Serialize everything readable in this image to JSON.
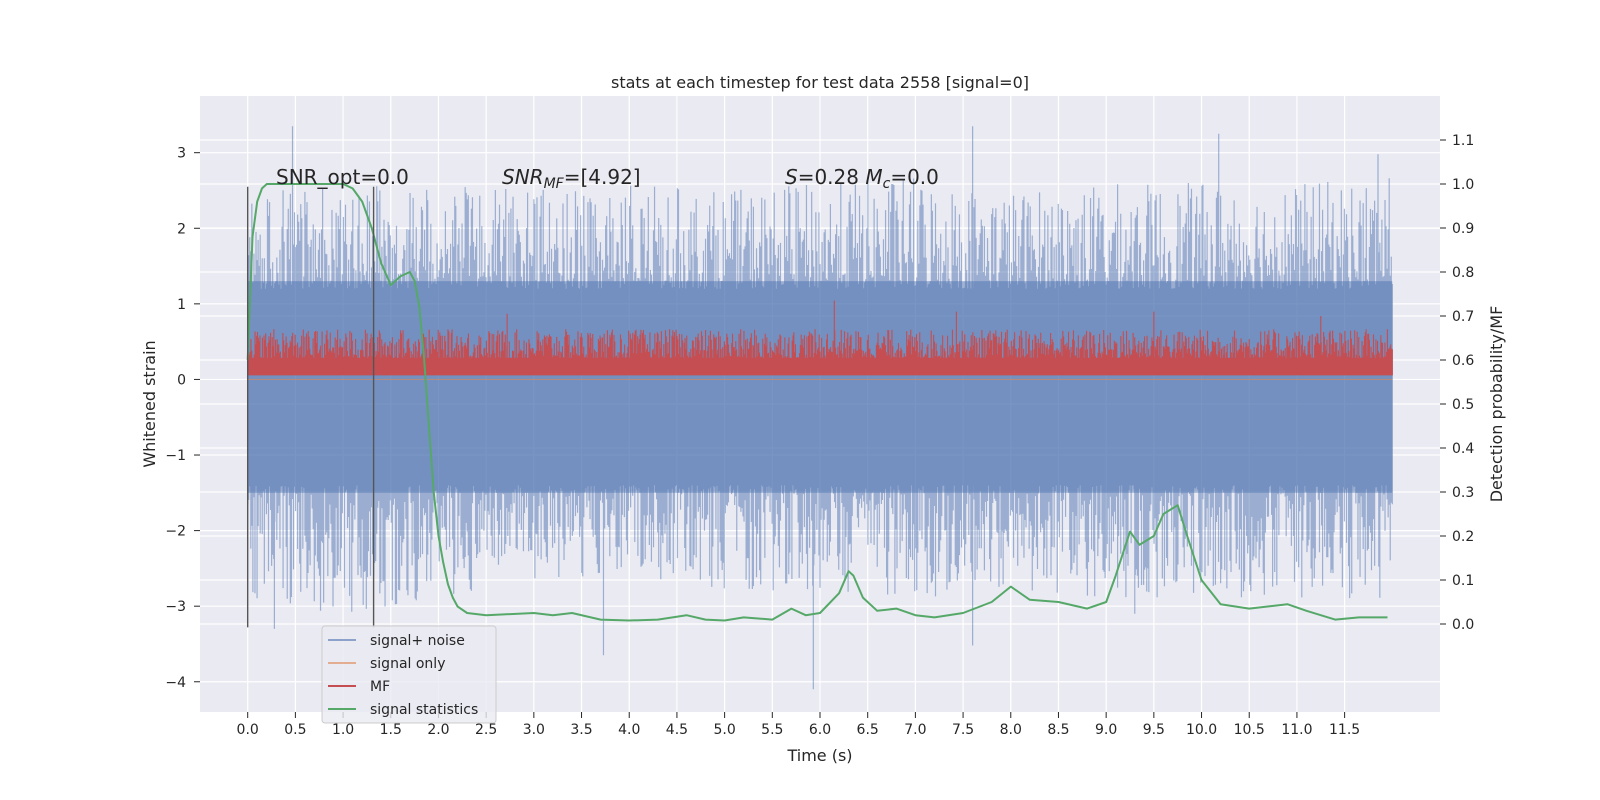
{
  "chart_data": {
    "type": "line",
    "title": "stats at each timestep for test data 2558 [signal=0]",
    "xlabel": "Time (s)",
    "ylabel": "Whitened strain",
    "y2label": "Detection probability/MF",
    "xlim": [
      -0.5,
      12.5
    ],
    "ylim": [
      -4.4,
      3.75
    ],
    "y2lim": [
      -0.2,
      1.2
    ],
    "x_ticks": [
      0.0,
      0.5,
      1.0,
      1.5,
      2.0,
      2.5,
      3.0,
      3.5,
      4.0,
      4.5,
      5.0,
      5.5,
      6.0,
      6.5,
      7.0,
      7.5,
      8.0,
      8.5,
      9.0,
      9.5,
      10.0,
      10.5,
      11.0,
      11.5
    ],
    "x_tick_labels": [
      "0.0",
      "0.5",
      "1.0",
      "1.5",
      "2.0",
      "2.5",
      "3.0",
      "3.5",
      "4.0",
      "4.5",
      "5.0",
      "5.5",
      "6.0",
      "6.5",
      "7.0",
      "7.5",
      "8.0",
      "8.5",
      "9.0",
      "9.5",
      "10.0",
      "10.5",
      "11.0",
      "11.5"
    ],
    "y_ticks": [
      -4,
      -3,
      -2,
      -1,
      0,
      1,
      2,
      3
    ],
    "y_tick_labels": [
      "−4",
      "−3",
      "−2",
      "−1",
      "0",
      "1",
      "2",
      "3"
    ],
    "y2_ticks": [
      0.0,
      0.1,
      0.2,
      0.3,
      0.4,
      0.5,
      0.6,
      0.7,
      0.8,
      0.9,
      1.0,
      1.1
    ],
    "y2_tick_labels": [
      "0.0",
      "0.1",
      "0.2",
      "0.3",
      "0.4",
      "0.5",
      "0.6",
      "0.7",
      "0.8",
      "0.9",
      "1.0",
      "1.1"
    ],
    "grid": true,
    "legend_position": "lower-left",
    "annotations": [
      {
        "text": "SNR_opt=0.0",
        "x": 0.2,
        "y": 2.45
      },
      {
        "text": "SNRMF=[4.92]",
        "x": 2.6,
        "y": 2.45
      },
      {
        "text": "S=0.28   Mc=0.0",
        "x": 5.6,
        "y": 2.45
      }
    ],
    "vlines": [
      {
        "x": 0.0,
        "ymin": -3.28,
        "ymax": 2.55
      },
      {
        "x": 1.32,
        "ymin": -3.28,
        "ymax": 2.55
      }
    ],
    "series": [
      {
        "name": "signal+ noise",
        "color": "#4c72b0",
        "axis": "left",
        "kind": "noise",
        "x_range": [
          0.0,
          12.0
        ],
        "envelope_upper": [
          2.5,
          2.6,
          2.6,
          2.5,
          2.6,
          2.5,
          2.6,
          2.7,
          2.5,
          2.6,
          2.6,
          2.6,
          2.7
        ],
        "envelope_lower": [
          -3.0,
          -3.1,
          -2.9,
          -2.7,
          -2.6,
          -2.8,
          -2.8,
          -2.9,
          -2.8,
          -2.9,
          -2.9,
          -2.9,
          -2.9
        ],
        "extremes": [
          {
            "x": 0.47,
            "y": 3.35
          },
          {
            "x": 0.28,
            "y": -3.3
          },
          {
            "x": 3.73,
            "y": -3.65
          },
          {
            "x": 5.93,
            "y": -4.1
          },
          {
            "x": 7.6,
            "y": 3.35
          },
          {
            "x": 7.6,
            "y": -3.52
          },
          {
            "x": 10.18,
            "y": 3.25
          },
          {
            "x": 9.3,
            "y": -3.1
          },
          {
            "x": 11.85,
            "y": 2.98
          }
        ]
      },
      {
        "name": "signal only",
        "color": "#dd8452",
        "axis": "left",
        "kind": "flat",
        "x": [
          0.0,
          12.0
        ],
        "y": [
          0.0,
          0.0
        ]
      },
      {
        "name": "MF",
        "color": "#c44e52",
        "axis": "right",
        "kind": "band",
        "x_range": [
          0.0,
          12.0
        ],
        "base": 0.57,
        "upper_typ": 0.67,
        "extremes": [
          {
            "x": 6.15,
            "y": 0.735
          },
          {
            "x": 2.72,
            "y": 0.705
          },
          {
            "x": 7.43,
            "y": 0.71
          },
          {
            "x": 9.5,
            "y": 0.71
          },
          {
            "x": 11.25,
            "y": 0.7
          }
        ]
      },
      {
        "name": "signal statistics",
        "color": "#55a868",
        "axis": "right",
        "kind": "line",
        "x": [
          0.0,
          0.05,
          0.1,
          0.15,
          0.2,
          0.3,
          0.5,
          0.75,
          1.0,
          1.1,
          1.2,
          1.3,
          1.4,
          1.5,
          1.6,
          1.7,
          1.75,
          1.8,
          1.85,
          1.9,
          1.95,
          2.0,
          2.05,
          2.1,
          2.15,
          2.2,
          2.3,
          2.5,
          3.0,
          3.2,
          3.4,
          3.7,
          4.0,
          4.3,
          4.6,
          4.8,
          5.0,
          5.2,
          5.5,
          5.7,
          5.85,
          6.0,
          6.2,
          6.3,
          6.35,
          6.45,
          6.6,
          6.8,
          7.0,
          7.2,
          7.5,
          7.8,
          8.0,
          8.2,
          8.5,
          8.8,
          9.0,
          9.1,
          9.25,
          9.35,
          9.5,
          9.6,
          9.75,
          9.85,
          10.0,
          10.2,
          10.5,
          10.9,
          11.1,
          11.4,
          11.65,
          11.95
        ],
        "y": [
          0.6,
          0.88,
          0.96,
          0.99,
          1.0,
          1.0,
          1.0,
          1.0,
          1.0,
          0.99,
          0.96,
          0.9,
          0.82,
          0.77,
          0.79,
          0.8,
          0.78,
          0.72,
          0.6,
          0.45,
          0.3,
          0.2,
          0.14,
          0.09,
          0.06,
          0.04,
          0.025,
          0.02,
          0.025,
          0.02,
          0.025,
          0.01,
          0.008,
          0.01,
          0.02,
          0.01,
          0.008,
          0.015,
          0.01,
          0.035,
          0.02,
          0.025,
          0.07,
          0.12,
          0.11,
          0.06,
          0.03,
          0.035,
          0.02,
          0.015,
          0.025,
          0.05,
          0.085,
          0.055,
          0.05,
          0.035,
          0.05,
          0.11,
          0.21,
          0.18,
          0.2,
          0.25,
          0.27,
          0.2,
          0.1,
          0.045,
          0.035,
          0.045,
          0.03,
          0.01,
          0.015,
          0.015
        ]
      }
    ]
  }
}
